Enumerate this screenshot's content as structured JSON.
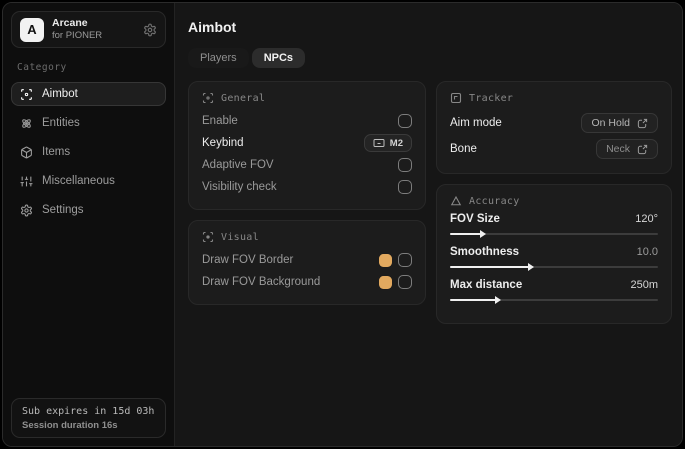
{
  "brand": {
    "title": "Arcane",
    "subtitle": "for PIONER",
    "logo_letter": "A"
  },
  "sidebar": {
    "category_label": "Category",
    "items": [
      {
        "label": "Aimbot",
        "icon": "scan-icon",
        "selected": true
      },
      {
        "label": "Entities",
        "icon": "atom-icon",
        "selected": false
      },
      {
        "label": "Items",
        "icon": "package-icon",
        "selected": false
      },
      {
        "label": "Miscellaneous",
        "icon": "sliders-icon",
        "selected": false
      },
      {
        "label": "Settings",
        "icon": "gear-icon",
        "selected": false
      }
    ],
    "footer": {
      "sub_expires": "Sub expires in 15d 03h",
      "session_duration": "Session duration 16s"
    }
  },
  "main": {
    "title": "Aimbot",
    "tabs": [
      {
        "label": "Players",
        "selected": false
      },
      {
        "label": "NPCs",
        "selected": true
      }
    ],
    "cards": {
      "general": {
        "title": "General",
        "rows": [
          {
            "label": "Enable",
            "control": "checkbox",
            "checked": false
          },
          {
            "label": "Keybind",
            "control": "keybind-badge",
            "value": "M2"
          },
          {
            "label": "Adaptive FOV",
            "control": "checkbox",
            "checked": false
          },
          {
            "label": "Visibility check",
            "control": "checkbox",
            "checked": false
          }
        ]
      },
      "visual": {
        "title": "Visual",
        "rows": [
          {
            "label": "Draw FOV Border",
            "color": "#e2a95f",
            "checked": false
          },
          {
            "label": "Draw FOV Background",
            "color": "#e2a95f",
            "checked": false
          }
        ]
      },
      "tracker": {
        "title": "Tracker",
        "rows": [
          {
            "label": "Aim mode",
            "value": "On Hold"
          },
          {
            "label": "Bone",
            "value": "Neck"
          }
        ]
      },
      "accuracy": {
        "title": "Accuracy",
        "sliders": [
          {
            "label": "FOV Size",
            "value": "120°",
            "percent": 15
          },
          {
            "label": "Smoothness",
            "value": "10.0",
            "percent": 38
          },
          {
            "label": "Max distance",
            "value": "250m",
            "percent": 22
          }
        ]
      }
    }
  },
  "colors": {
    "swatch": "#e2a95f"
  }
}
